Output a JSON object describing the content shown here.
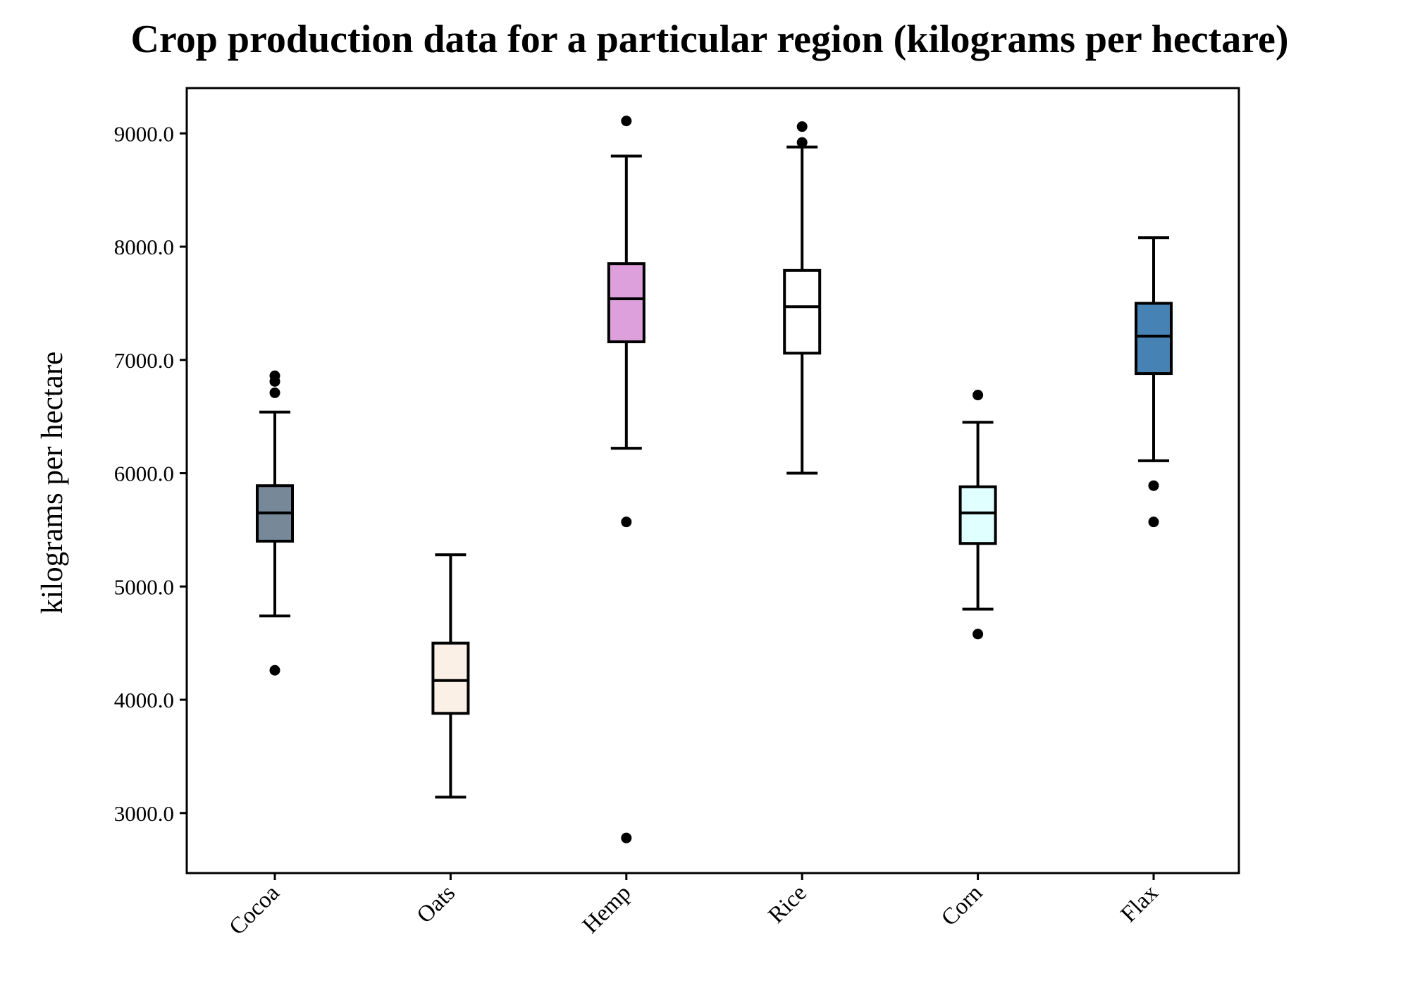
{
  "chart_data": {
    "type": "box",
    "title": "Crop production data for a particular region (kilograms per hectare)",
    "xlabel": "",
    "ylabel": "kilograms per hectare",
    "ylim": [
      2470,
      9400
    ],
    "yticks": [
      3000,
      4000,
      5000,
      6000,
      7000,
      8000,
      9000
    ],
    "ytick_labels": [
      "3000.0",
      "4000.0",
      "5000.0",
      "6000.0",
      "7000.0",
      "8000.0",
      "9000.0"
    ],
    "grid": false,
    "categories": [
      "Cocoa",
      "Oats",
      "Hemp",
      "Rice",
      "Corn",
      "Flax"
    ],
    "boxes": [
      {
        "category": "Cocoa",
        "whisker_low": 4740,
        "q1": 5400,
        "median": 5650,
        "q3": 5890,
        "whisker_high": 6540,
        "outliers": [
          4260,
          6710,
          6810,
          6860
        ],
        "color": "#778899"
      },
      {
        "category": "Oats",
        "whisker_low": 3140,
        "q1": 3880,
        "median": 4170,
        "q3": 4500,
        "whisker_high": 5280,
        "outliers": [],
        "color": "#faf0e6"
      },
      {
        "category": "Hemp",
        "whisker_low": 6220,
        "q1": 7160,
        "median": 7540,
        "q3": 7850,
        "whisker_high": 8800,
        "outliers": [
          2780,
          5570,
          9110
        ],
        "color": "#dda0dd"
      },
      {
        "category": "Rice",
        "whisker_low": 6000,
        "q1": 7060,
        "median": 7470,
        "q3": 7790,
        "whisker_high": 8880,
        "outliers": [
          8920,
          9060
        ],
        "color": "#ffffff"
      },
      {
        "category": "Corn",
        "whisker_low": 4800,
        "q1": 5380,
        "median": 5650,
        "q3": 5880,
        "whisker_high": 6450,
        "outliers": [
          4580,
          6690
        ],
        "color": "#e0ffff"
      },
      {
        "category": "Flax",
        "whisker_low": 6110,
        "q1": 6880,
        "median": 7210,
        "q3": 7500,
        "whisker_high": 8080,
        "outliers": [
          5570,
          5890
        ],
        "color": "#4682b4"
      }
    ]
  }
}
